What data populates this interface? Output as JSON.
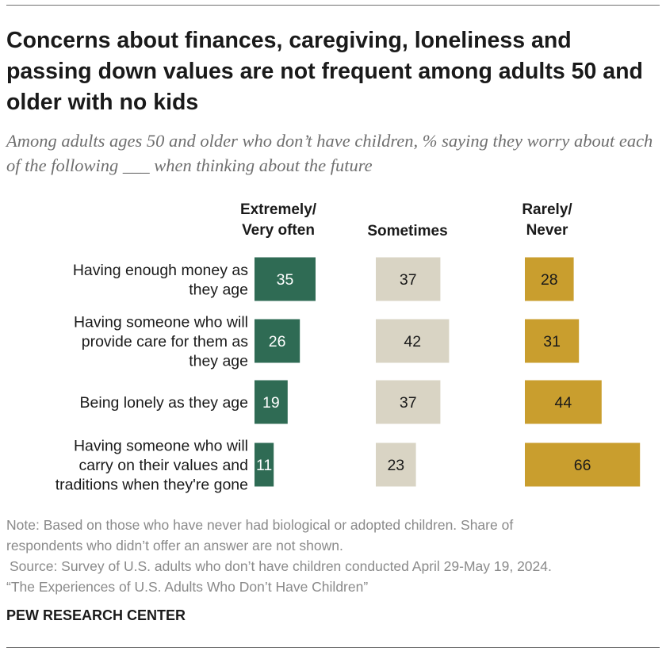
{
  "title": "Concerns about finances, caregiving, loneliness and passing down values are not frequent among adults 50 and older with no kids",
  "subtitle": "Among adults ages 50 and older who don’t have children, % saying they worry about each of the following ___ when thinking about the future",
  "note": {
    "note_line1": "Note: Based on those who have never had biological or adopted children. Share of",
    "note_line2": "respondents who didn’t offer an answer are not shown.",
    "source_line1": "Source: Survey of U.S. adults who don’t have children conducted April 29-May 19, 2024.",
    "source_line2": "“The Experiences of U.S. Adults Who Don’t Have Children”"
  },
  "brand": "PEW RESEARCH CENTER",
  "colors": {
    "extremely": "#2f6b54",
    "sometimes": "#d9d4c4",
    "rarely": "#c99e2e"
  },
  "chart_data": {
    "type": "bar",
    "orientation": "horizontal",
    "layout": "small-multiples",
    "title": "Concerns about finances, caregiving, loneliness and passing down values are not frequent among adults 50 and older with no kids",
    "categories": [
      [
        "Having enough money as",
        "they age"
      ],
      [
        "Having someone who will",
        "provide care for them as",
        "they age"
      ],
      [
        "Being lonely as they age"
      ],
      [
        "Having someone who will",
        "carry on their values and",
        "traditions when they're gone"
      ]
    ],
    "series": [
      {
        "name": "Extremely/ Very often",
        "header_lines": [
          "Extremely/",
          "Very often"
        ],
        "values": [
          35,
          26,
          19,
          11
        ]
      },
      {
        "name": "Sometimes",
        "header_lines": [
          "Sometimes"
        ],
        "values": [
          37,
          42,
          37,
          23
        ]
      },
      {
        "name": "Rarely/ Never",
        "header_lines": [
          "Rarely/",
          "Never"
        ],
        "values": [
          28,
          31,
          44,
          66
        ]
      }
    ],
    "unit": "%",
    "xlim": [
      0,
      100
    ]
  }
}
